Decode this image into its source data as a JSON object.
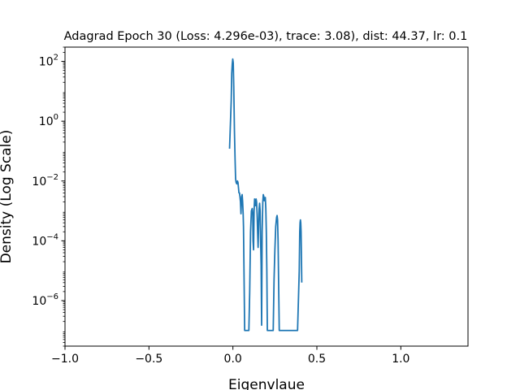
{
  "chart_data": {
    "type": "line",
    "title": "Adagrad Epoch 30 (Loss: 4.296e-03), trace: 3.08), dist: 44.37, lr: 0.1",
    "xlabel": "Eigenvlaue",
    "ylabel": "Density (Log Scale)",
    "xlim": [
      -1.0,
      1.4
    ],
    "ylim": [
      3e-08,
      300
    ],
    "yscale": "log",
    "grid": false,
    "line_color": "#1f77b4",
    "x_ticks": [
      {
        "value": -1.0,
        "label": "−1.0"
      },
      {
        "value": -0.5,
        "label": "−0.5"
      },
      {
        "value": 0.0,
        "label": "0.0"
      },
      {
        "value": 0.5,
        "label": "0.5"
      },
      {
        "value": 1.0,
        "label": "1.0"
      }
    ],
    "y_ticks": [
      {
        "exp": 2,
        "base": "10",
        "power": "2"
      },
      {
        "exp": 0,
        "base": "10",
        "power": "0"
      },
      {
        "exp": -2,
        "base": "10",
        "power": "−2"
      },
      {
        "exp": -4,
        "base": "10",
        "power": "−4"
      },
      {
        "exp": -6,
        "base": "10",
        "power": "−6"
      }
    ],
    "series": [
      {
        "x": [
          -0.02,
          -0.01,
          -0.007,
          -0.004,
          -0.001,
          0.002,
          0.005,
          0.009,
          0.013,
          0.016,
          0.019,
          0.021,
          0.023,
          0.025,
          0.027,
          0.03,
          0.033,
          0.036,
          0.039,
          0.042,
          0.045,
          0.048,
          0.05,
          0.052,
          0.055,
          0.058,
          0.061,
          0.063,
          0.064,
          0.07,
          0.08,
          0.09,
          0.095,
          0.1,
          0.105,
          0.11,
          0.115,
          0.118,
          0.12,
          0.123,
          0.126,
          0.129,
          0.132,
          0.135,
          0.138,
          0.141,
          0.144,
          0.147,
          0.15,
          0.153,
          0.156,
          0.159,
          0.162,
          0.165,
          0.168,
          0.171,
          0.174,
          0.178,
          0.181,
          0.184,
          0.187,
          0.19,
          0.193,
          0.196,
          0.199,
          0.202,
          0.205,
          0.21,
          0.22,
          0.23,
          0.235,
          0.24,
          0.245,
          0.25,
          0.255,
          0.26,
          0.263,
          0.266,
          0.269,
          0.272,
          0.276,
          0.28,
          0.29,
          0.3,
          0.32,
          0.34,
          0.36,
          0.38,
          0.385,
          0.39,
          0.395,
          0.398,
          0.4,
          0.402,
          0.404,
          0.406,
          0.408,
          0.41
        ],
        "y": [
          0.12,
          5.0,
          40,
          80,
          120,
          90,
          15,
          0.5,
          0.05,
          0.012,
          0.009,
          0.0085,
          0.008,
          0.0085,
          0.01,
          0.009,
          0.006,
          0.004,
          0.004,
          0.003,
          0.002,
          0.0008,
          0.0015,
          0.003,
          0.0035,
          0.002,
          0.0008,
          0.0003,
          0.0001,
          1e-07,
          1e-07,
          1e-07,
          1e-07,
          2e-06,
          0.0002,
          0.001,
          0.0012,
          0.0008,
          0.0001,
          5e-05,
          0.001,
          0.0025,
          0.002,
          0.0015,
          0.0025,
          0.002,
          0.0008,
          0.0002,
          6e-05,
          0.0003,
          0.0012,
          0.0018,
          0.001,
          0.0001,
          1.5e-05,
          1.5e-07,
          0.0002,
          0.002,
          0.0035,
          0.003,
          0.0022,
          0.0025,
          0.0028,
          0.0012,
          0.0002,
          1e-05,
          1e-07,
          1e-07,
          1e-07,
          1e-07,
          1e-07,
          1e-07,
          5e-06,
          5e-05,
          0.0003,
          0.0006,
          0.0007,
          0.0005,
          0.0001,
          5e-06,
          1e-07,
          1e-07,
          1e-07,
          1e-07,
          1e-07,
          1e-07,
          1e-07,
          1e-07,
          1e-07,
          1e-06,
          1e-05,
          0.0002,
          0.0004,
          0.0005,
          0.0004,
          0.0002,
          3e-05,
          4e-06
        ]
      }
    ]
  }
}
